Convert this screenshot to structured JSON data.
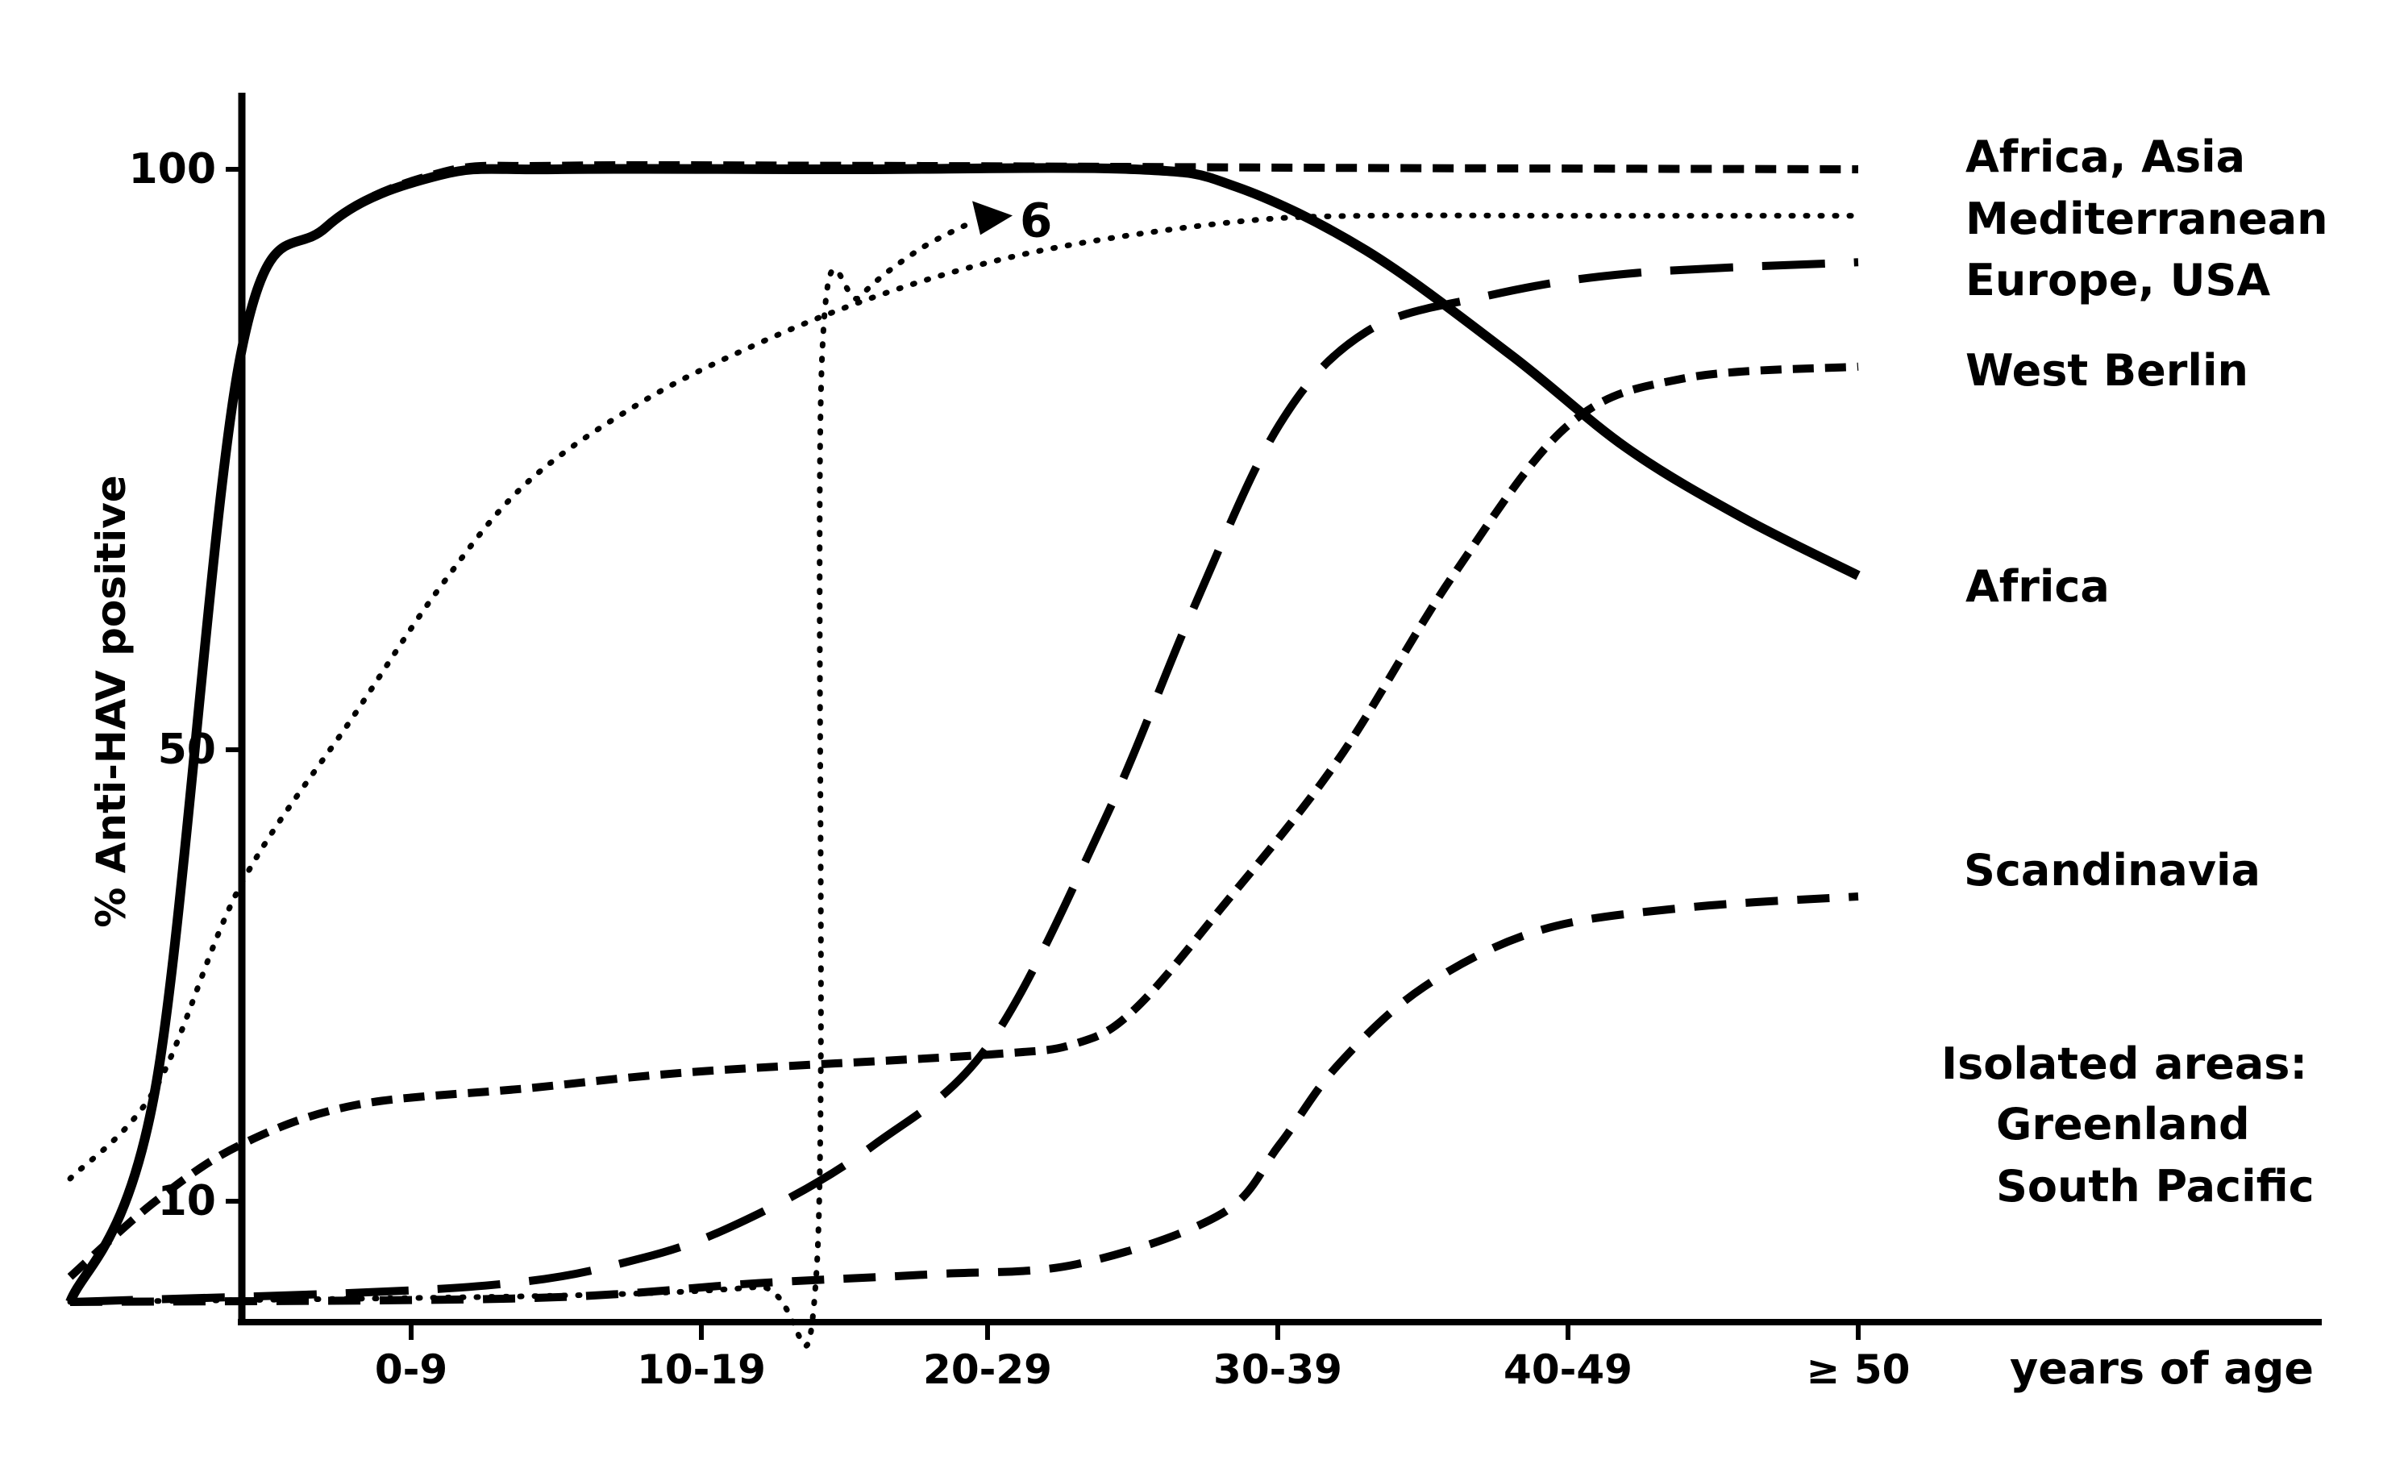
{
  "chart_data": {
    "type": "line",
    "ylabel": "% Anti-HAV positive",
    "xlabel": "years of age",
    "x_categories": [
      "0-9",
      "10-19",
      "20-29",
      "30-39",
      "40-49",
      "≥ 50"
    ],
    "y_ticks": [
      10,
      50,
      100
    ],
    "ylim": [
      2,
      106
    ],
    "xlim": [
      -0.6,
      5.1
    ],
    "grid": false,
    "legend": "right (labels beside curves)",
    "series": [
      {
        "label": "Africa",
        "style": "solid",
        "points": [
          [
            -0.6,
            2
          ],
          [
            -0.45,
            20
          ],
          [
            -0.3,
            84
          ],
          [
            -0.15,
            95
          ],
          [
            0.1,
            99.5
          ],
          [
            0.5,
            100
          ],
          [
            1.5,
            100
          ],
          [
            2.5,
            100
          ],
          [
            2.85,
            98.5
          ],
          [
            3.3,
            93
          ],
          [
            3.8,
            84
          ],
          [
            4.2,
            76
          ],
          [
            4.6,
            70
          ],
          [
            5.0,
            65
          ]
        ]
      },
      {
        "label": "Africa, Asia",
        "style": "short-dash",
        "points": [
          [
            -0.6,
            2
          ],
          [
            -0.45,
            20
          ],
          [
            -0.3,
            84
          ],
          [
            -0.15,
            95
          ],
          [
            0.1,
            99.7
          ],
          [
            0.5,
            100.3
          ],
          [
            1.5,
            100.3
          ],
          [
            2.5,
            100.2
          ],
          [
            3.5,
            100.1
          ],
          [
            5.0,
            100
          ]
        ]
      },
      {
        "label": "Mediterranean",
        "style": "dotted",
        "points": [
          [
            -0.6,
            12
          ],
          [
            -0.45,
            20
          ],
          [
            -0.3,
            38
          ],
          [
            -0.1,
            53
          ],
          [
            0.1,
            64
          ],
          [
            0.4,
            73
          ],
          [
            0.8,
            80
          ],
          [
            1.2,
            85
          ],
          [
            1.6,
            89
          ],
          [
            2.0,
            92
          ],
          [
            2.4,
            94
          ],
          [
            2.9,
            95.6
          ],
          [
            3.3,
            96
          ],
          [
            4.0,
            96
          ],
          [
            5.0,
            96
          ]
        ]
      },
      {
        "label": "6",
        "style": "dotted",
        "points": [
          [
            -0.6,
            2
          ],
          [
            0.5,
            2.5
          ],
          [
            1.2,
            3.2
          ],
          [
            1.4,
            4.2
          ],
          [
            1.42,
            84
          ],
          [
            1.55,
            89
          ],
          [
            1.75,
            93
          ],
          [
            1.95,
            95.6
          ]
        ]
      },
      {
        "label": "Europe, USA",
        "style": "long-dash",
        "points": [
          [
            -0.6,
            2
          ],
          [
            0.2,
            3.2
          ],
          [
            0.8,
            5.5
          ],
          [
            1.2,
            9
          ],
          [
            1.6,
            15
          ],
          [
            2.0,
            24
          ],
          [
            2.4,
            44
          ],
          [
            2.7,
            62
          ],
          [
            3.0,
            78
          ],
          [
            3.3,
            86
          ],
          [
            3.7,
            89
          ],
          [
            4.2,
            91
          ],
          [
            5.0,
            92
          ]
        ]
      },
      {
        "label": "West Berlin",
        "style": "short-dash",
        "points": [
          [
            -0.6,
            4
          ],
          [
            -0.45,
            10
          ],
          [
            -0.3,
            15
          ],
          [
            -0.1,
            18.5
          ],
          [
            0.4,
            20
          ],
          [
            1.0,
            21.5
          ],
          [
            2.0,
            23
          ],
          [
            2.3,
            24
          ],
          [
            2.5,
            27
          ],
          [
            2.8,
            36
          ],
          [
            3.2,
            49
          ],
          [
            3.6,
            65
          ],
          [
            4.0,
            78
          ],
          [
            4.4,
            82
          ],
          [
            5.0,
            83
          ]
        ]
      },
      {
        "label": "Scandinavia",
        "style": "dash",
        "points": [
          [
            -0.6,
            2
          ],
          [
            0.4,
            2.3
          ],
          [
            1.2,
            3.5
          ],
          [
            1.8,
            4.2
          ],
          [
            2.3,
            5
          ],
          [
            2.8,
            9
          ],
          [
            3.0,
            15
          ],
          [
            3.2,
            22
          ],
          [
            3.5,
            29
          ],
          [
            3.9,
            34
          ],
          [
            4.4,
            36
          ],
          [
            5.0,
            37
          ]
        ]
      }
    ],
    "annotations": [
      {
        "text": "Africa, Asia",
        "y": 100
      },
      {
        "text": "Mediterranean",
        "y": 96
      },
      {
        "text": "Europe, USA",
        "y": 92
      },
      {
        "text": "West Berlin",
        "y": 83
      },
      {
        "text": "Africa",
        "y": 65
      },
      {
        "text": "Scandinavia",
        "y": 37
      },
      {
        "text": "Isolated areas:",
        "y": 22
      },
      {
        "text": "Greenland",
        "y": 16
      },
      {
        "text": "South Pacific",
        "y": 10
      },
      {
        "text": "6",
        "x": 1.95,
        "y": 95.6
      }
    ]
  }
}
